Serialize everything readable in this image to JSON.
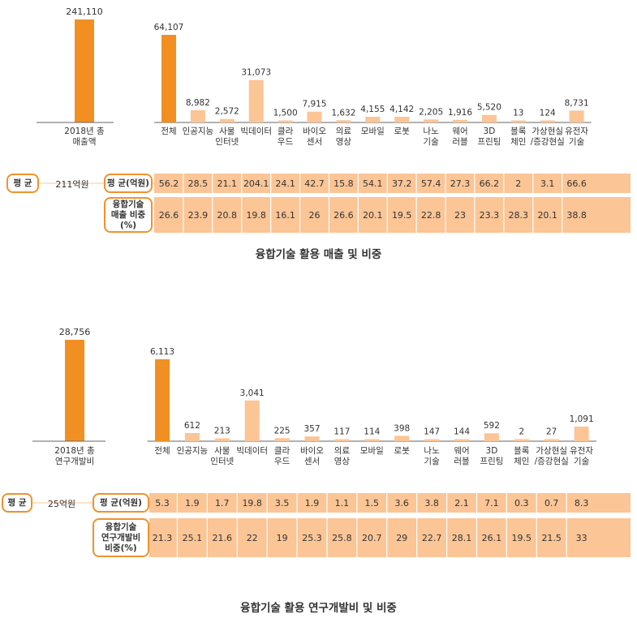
{
  "charts": [
    {
      "title": "융합기술 활용 매출 및 비중",
      "total_label": [
        "2018년 총",
        "매출액"
      ],
      "row_tag": "평 균",
      "total_avg": "211억원",
      "row1_label": "평 균(억원)",
      "row2_label": [
        "융합기술",
        "매출 비중",
        "(%)"
      ]
    },
    {
      "title": "융합기술 활용 연구개발비 및 비중",
      "total_label": [
        "2018년 총",
        "연구개발비"
      ],
      "row_tag": "평 균",
      "total_avg": "25억원",
      "row1_label": "평 균(억원)",
      "row2_label": [
        "융합기술",
        "연구개발비",
        "비중(%)"
      ]
    }
  ],
  "chart_data": [
    {
      "type": "bar",
      "title": "융합기술 활용 매출 및 비중",
      "total": {
        "category": "2018년 총 매출액",
        "value": 241110,
        "label": "241,110"
      },
      "categories": [
        [
          "전체"
        ],
        [
          "인공지능"
        ],
        [
          "사물",
          "인터넷"
        ],
        [
          "빅데이터"
        ],
        [
          "클라",
          "우드"
        ],
        [
          "바이오",
          "센서"
        ],
        [
          "의료",
          "영상"
        ],
        [
          "모바일"
        ],
        [
          "로봇"
        ],
        [
          "나노",
          "기술"
        ],
        [
          "웨어",
          "러블"
        ],
        [
          "3D",
          "프린팅"
        ],
        [
          "블록",
          "체인"
        ],
        [
          "가상현실",
          "/증강현실"
        ],
        [
          "유전자",
          "기술"
        ]
      ],
      "values": [
        64107,
        8982,
        2572,
        31073,
        1500,
        7915,
        1632,
        4155,
        4142,
        2205,
        1916,
        5520,
        13,
        124,
        8731
      ],
      "value_labels": [
        "64,107",
        "8,982",
        "2,572",
        "31,073",
        "1,500",
        "7,915",
        "1,632",
        "4,155",
        "4,142",
        "2,205",
        "1,916",
        "5,520",
        "13",
        "124",
        "8,731"
      ],
      "table": {
        "avg": [
          "56.2",
          "28.5",
          "21.1",
          "204.1",
          "24.1",
          "42.7",
          "15.8",
          "54.1",
          "37.2",
          "57.4",
          "27.3",
          "66.2",
          "2",
          "3.1",
          "66.6"
        ],
        "share": [
          "26.6",
          "23.9",
          "20.8",
          "19.8",
          "16.1",
          "26",
          "26.6",
          "20.1",
          "19.5",
          "22.8",
          "23",
          "23.3",
          "28.3",
          "20.1",
          "38.8"
        ]
      },
      "colors": {
        "highlight": "#f28f22",
        "bar": "#fbc596",
        "table": "#fbc596",
        "border": "#f0922c"
      }
    },
    {
      "type": "bar",
      "title": "융합기술 활용 연구개발비 및 비중",
      "total": {
        "category": "2018년 총 연구개발비",
        "value": 28756,
        "label": "28,756"
      },
      "categories": [
        [
          "전체"
        ],
        [
          "인공지능"
        ],
        [
          "사물",
          "인터넷"
        ],
        [
          "빅데이터"
        ],
        [
          "클라",
          "우드"
        ],
        [
          "바이오",
          "센서"
        ],
        [
          "의료",
          "영상"
        ],
        [
          "모바일"
        ],
        [
          "로봇"
        ],
        [
          "나노",
          "기술"
        ],
        [
          "웨어",
          "러블"
        ],
        [
          "3D",
          "프린팅"
        ],
        [
          "블록",
          "체인"
        ],
        [
          "가상현실",
          "/증강현실"
        ],
        [
          "유전자",
          "기술"
        ]
      ],
      "values": [
        6113,
        612,
        213,
        3041,
        225,
        357,
        117,
        114,
        398,
        147,
        144,
        592,
        2,
        27,
        1091
      ],
      "value_labels": [
        "6,113",
        "612",
        "213",
        "3,041",
        "225",
        "357",
        "117",
        "114",
        "398",
        "147",
        "144",
        "592",
        "2",
        "27",
        "1,091"
      ],
      "table": {
        "avg": [
          "5.3",
          "1.9",
          "1.7",
          "19.8",
          "3.5",
          "1.9",
          "1.1",
          "1.5",
          "3.6",
          "3.8",
          "2.1",
          "7.1",
          "0.3",
          "0.7",
          "8.3"
        ],
        "share": [
          "21.3",
          "25.1",
          "21.6",
          "22",
          "19",
          "25.3",
          "25.8",
          "20.7",
          "29",
          "22.7",
          "28.1",
          "26.1",
          "19.5",
          "21.5",
          "33"
        ]
      },
      "colors": {
        "highlight": "#f28f22",
        "bar": "#fbc596",
        "table": "#fbc596",
        "border": "#f0922c"
      }
    }
  ]
}
